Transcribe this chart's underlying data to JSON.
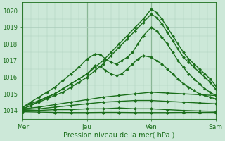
{
  "bg_color": "#cce8d8",
  "grid_color": "#aaccbb",
  "line_color": "#1a6e1a",
  "marker_color": "#1a6e1a",
  "xlabel": "Pression niveau de la mer( hPa )",
  "xtick_labels": [
    "Mer",
    "Jeu",
    "Ven",
    "Sam"
  ],
  "xtick_positions": [
    0,
    48,
    96,
    144
  ],
  "ylim": [
    1013.5,
    1020.5
  ],
  "ytick_vals": [
    1014,
    1015,
    1016,
    1017,
    1018,
    1019,
    1020
  ],
  "total_hours": 144,
  "lines": [
    {
      "x": [
        0,
        6,
        12,
        18,
        24,
        30,
        36,
        42,
        48,
        54,
        60,
        66,
        72,
        78,
        84,
        90,
        96,
        100,
        104,
        108,
        112,
        116,
        120,
        124,
        128,
        132,
        136,
        140,
        144
      ],
      "y": [
        1014.2,
        1014.4,
        1014.6,
        1014.8,
        1015.0,
        1015.3,
        1015.6,
        1015.9,
        1016.2,
        1016.6,
        1017.0,
        1017.5,
        1018.0,
        1018.5,
        1019.0,
        1019.5,
        1020.1,
        1019.9,
        1019.5,
        1019.0,
        1018.5,
        1018.0,
        1017.5,
        1017.1,
        1016.8,
        1016.5,
        1016.2,
        1015.9,
        1015.5
      ],
      "marker": "D",
      "ms": 2.0,
      "lw": 1.0
    },
    {
      "x": [
        0,
        6,
        12,
        18,
        24,
        30,
        36,
        42,
        48,
        54,
        60,
        66,
        72,
        78,
        84,
        90,
        96,
        100,
        104,
        108,
        112,
        116,
        120,
        124,
        128,
        132,
        136,
        140,
        144
      ],
      "y": [
        1014.1,
        1014.3,
        1014.5,
        1014.7,
        1014.9,
        1015.1,
        1015.4,
        1015.7,
        1016.0,
        1016.4,
        1016.8,
        1017.3,
        1017.8,
        1018.3,
        1018.8,
        1019.3,
        1019.8,
        1019.6,
        1019.2,
        1018.7,
        1018.2,
        1017.7,
        1017.2,
        1016.9,
        1016.6,
        1016.3,
        1016.0,
        1015.7,
        1015.3
      ],
      "marker": "D",
      "ms": 2.0,
      "lw": 1.0
    },
    {
      "x": [
        0,
        6,
        12,
        18,
        24,
        30,
        36,
        42,
        48,
        54,
        58,
        62,
        66,
        70,
        74,
        78,
        82,
        86,
        90,
        96,
        100,
        104,
        108,
        112,
        116,
        120,
        124,
        128,
        132,
        136,
        140,
        144
      ],
      "y": [
        1014.2,
        1014.5,
        1014.8,
        1015.1,
        1015.4,
        1015.8,
        1016.2,
        1016.6,
        1017.1,
        1017.4,
        1017.35,
        1017.1,
        1016.9,
        1016.8,
        1017.0,
        1017.2,
        1017.5,
        1018.0,
        1018.5,
        1019.0,
        1018.8,
        1018.4,
        1018.0,
        1017.5,
        1017.0,
        1016.6,
        1016.2,
        1015.9,
        1015.6,
        1015.3,
        1015.1,
        1014.9
      ],
      "marker": "D",
      "ms": 2.0,
      "lw": 1.0
    },
    {
      "x": [
        0,
        6,
        12,
        18,
        24,
        30,
        36,
        42,
        48,
        54,
        58,
        62,
        66,
        70,
        74,
        78,
        82,
        86,
        90,
        96,
        100,
        104,
        108,
        112,
        116,
        120,
        124,
        128,
        132,
        136,
        140,
        144
      ],
      "y": [
        1014.1,
        1014.3,
        1014.55,
        1014.8,
        1015.0,
        1015.3,
        1015.6,
        1015.9,
        1016.2,
        1016.7,
        1016.65,
        1016.4,
        1016.2,
        1016.1,
        1016.2,
        1016.5,
        1016.8,
        1017.1,
        1017.3,
        1017.2,
        1017.0,
        1016.8,
        1016.5,
        1016.2,
        1015.9,
        1015.6,
        1015.4,
        1015.2,
        1015.0,
        1014.9,
        1014.8,
        1014.7
      ],
      "marker": "D",
      "ms": 2.0,
      "lw": 1.0
    },
    {
      "x": [
        0,
        12,
        24,
        36,
        48,
        60,
        72,
        84,
        96,
        108,
        120,
        132,
        144
      ],
      "y": [
        1014.1,
        1014.2,
        1014.35,
        1014.5,
        1014.65,
        1014.8,
        1014.9,
        1015.0,
        1015.1,
        1015.05,
        1015.0,
        1014.95,
        1014.9
      ],
      "marker": "D",
      "ms": 2.0,
      "lw": 1.0
    },
    {
      "x": [
        0,
        12,
        24,
        36,
        48,
        60,
        72,
        84,
        96,
        108,
        120,
        132,
        144
      ],
      "y": [
        1014.05,
        1014.1,
        1014.2,
        1014.3,
        1014.4,
        1014.5,
        1014.55,
        1014.6,
        1014.6,
        1014.55,
        1014.5,
        1014.45,
        1014.4
      ],
      "marker": "D",
      "ms": 2.0,
      "lw": 1.0
    },
    {
      "x": [
        0,
        12,
        24,
        36,
        48,
        60,
        72,
        84,
        96,
        108,
        120,
        132,
        144
      ],
      "y": [
        1014.0,
        1014.0,
        1014.05,
        1014.05,
        1014.1,
        1014.1,
        1014.15,
        1014.1,
        1014.1,
        1014.05,
        1014.0,
        1013.97,
        1013.95
      ],
      "marker": "D",
      "ms": 2.0,
      "lw": 1.0
    },
    {
      "x": [
        0,
        12,
        24,
        36,
        48,
        60,
        72,
        84,
        96,
        108,
        120,
        132,
        144
      ],
      "y": [
        1013.92,
        1013.9,
        1013.88,
        1013.87,
        1013.87,
        1013.88,
        1013.88,
        1013.87,
        1013.87,
        1013.87,
        1013.88,
        1013.88,
        1013.88
      ],
      "marker": "D",
      "ms": 2.0,
      "lw": 1.0
    }
  ]
}
